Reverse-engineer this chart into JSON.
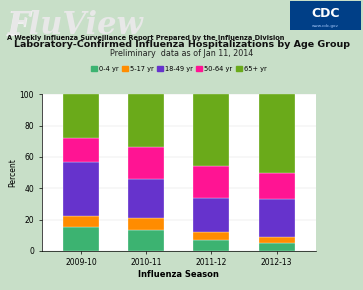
{
  "seasons": [
    "2009-10",
    "2010-11",
    "2011-12",
    "2012-13"
  ],
  "age_groups": [
    "0-4 yr",
    "5-17 yr",
    "18-49 yr",
    "50-64 yr",
    "65+ yr"
  ],
  "colors": [
    "#3cb371",
    "#ff8c00",
    "#6633cc",
    "#ff1493",
    "#6aaa1a"
  ],
  "values": {
    "0-4 yr": [
      15,
      13,
      7,
      5
    ],
    "5-17 yr": [
      7,
      8,
      5,
      4
    ],
    "18-49 yr": [
      35,
      25,
      22,
      24
    ],
    "50-64 yr": [
      15,
      20,
      20,
      17
    ],
    "65+ yr": [
      28,
      34,
      46,
      50
    ]
  },
  "title": "Laboratory-Confirmed Influenza Hospitalizations by Age Group",
  "subtitle": "Preliminary  data as of Jan 11, 2014",
  "xlabel": "Influenza Season",
  "ylabel": "Percent",
  "ylim": [
    0,
    100
  ],
  "yticks": [
    0,
    20,
    40,
    60,
    80,
    100
  ],
  "subheader_text": "A Weekly Influenza Surveillance Report Prepared by the Influenza Division",
  "bg_color": "#c8dfc8",
  "plot_bg_color": "#ffffff",
  "bar_width": 0.55,
  "fluview_color": "#e8e8e8",
  "header_line_color": "#4a7a4a"
}
